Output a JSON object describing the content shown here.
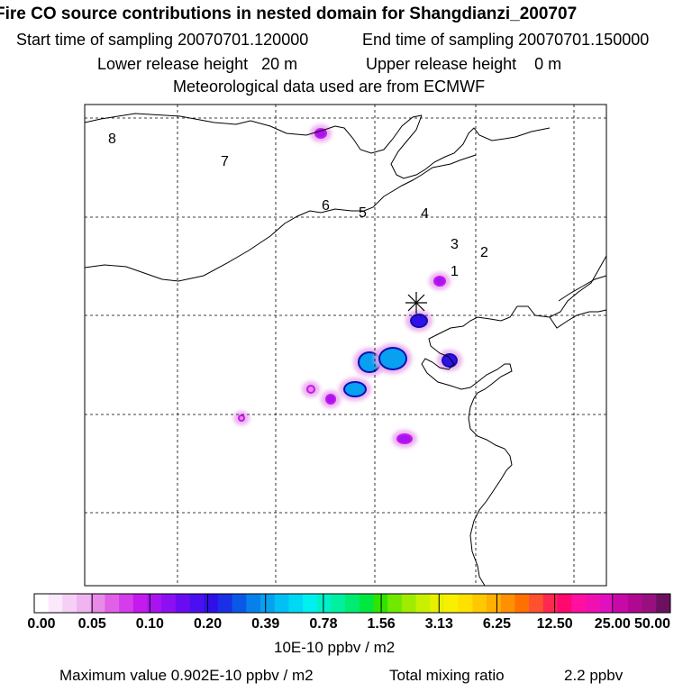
{
  "title": "Fire CO source contributions in nested domain for Shangdianzi_200707",
  "sampling": {
    "start": "Start time of sampling 20070701.120000",
    "end": "End time of sampling 20070701.150000"
  },
  "release": {
    "lower": "Lower release height   20 m",
    "upper": "Upper release height    0 m"
  },
  "met": "Meteorological data used are from ECMWF",
  "chart_data": {
    "type": "heatmap",
    "station_marker": "asterisk",
    "point_labels": [
      "8",
      "7",
      "6",
      "5",
      "4",
      "3",
      "2",
      "1"
    ],
    "hotspots": [
      {
        "level": 0.1
      },
      {
        "level": 0.2
      },
      {
        "level": 0.39
      },
      {
        "level": 0.39
      },
      {
        "level": 0.39
      },
      {
        "level": 0.2
      },
      {
        "level": 0.1
      },
      {
        "level": 0.1
      },
      {
        "level": 0.05
      },
      {
        "level": 0.1
      },
      {
        "level": 0.05
      }
    ],
    "colorbar": {
      "tick_labels": [
        "0.00",
        "0.05",
        "0.10",
        "0.20",
        "0.39",
        "0.78",
        "1.56",
        "3.13",
        "6.25",
        "12.50",
        "25.00",
        "50.00"
      ],
      "colors": [
        "#ffffff",
        "#fbe8fb",
        "#f6cff6",
        "#f0b4f0",
        "#e98ae9",
        "#e060e6",
        "#d43cec",
        "#c41aee",
        "#a814f0",
        "#8c10f2",
        "#6a0cf2",
        "#4a10f0",
        "#3010e8",
        "#1a30e4",
        "#0a58e6",
        "#0880ec",
        "#08a0f0",
        "#00c0f4",
        "#00d8f4",
        "#00f0f0",
        "#00f0c8",
        "#00f0a0",
        "#00ec70",
        "#00e840",
        "#30e400",
        "#70e800",
        "#a0ec00",
        "#c8f000",
        "#e8f000",
        "#f8f000",
        "#ffe000",
        "#ffc800",
        "#ffb000",
        "#ff9000",
        "#ff7000",
        "#ff5030",
        "#ff2850",
        "#ff0870",
        "#ff10a0",
        "#f010b0",
        "#e010c0",
        "#c808a8",
        "#b00890",
        "#981080",
        "#6c1060"
      ]
    }
  },
  "colorbar_unit": "10E-10 ppbv / m2",
  "footer": {
    "max": "Maximum value  0.902E-10 ppbv / m2",
    "total_label": "Total mixing ratio",
    "total_value": "2.2 ppbv"
  }
}
